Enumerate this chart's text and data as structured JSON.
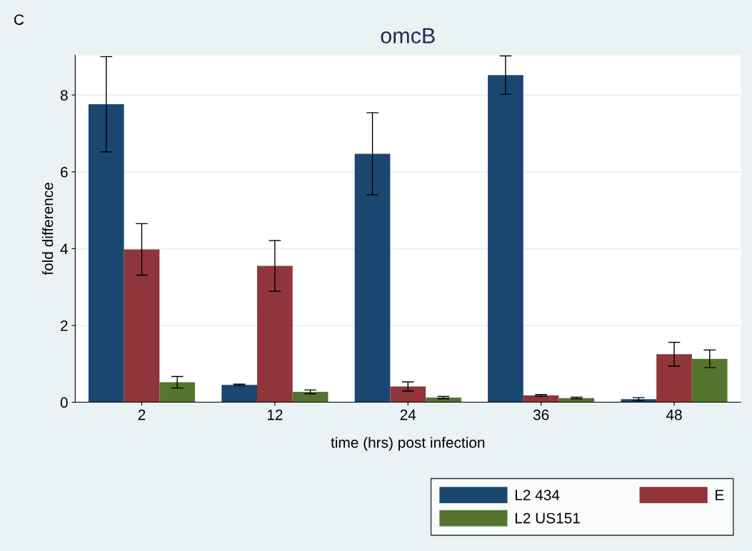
{
  "chart_data": {
    "type": "bar",
    "title": "omcB",
    "xlabel": "time (hrs) post infection",
    "ylabel": "fold difference",
    "annotations": [
      "C"
    ],
    "categories": [
      "2",
      "12",
      "24",
      "36",
      "48"
    ],
    "series": [
      {
        "name": "L2 434",
        "color": "#1a476f",
        "values": [
          7.76,
          0.45,
          6.47,
          8.52,
          0.08
        ],
        "errors": [
          1.24,
          0.02,
          1.07,
          0.5,
          0.04
        ]
      },
      {
        "name": "E",
        "color": "#90353b",
        "values": [
          3.98,
          3.55,
          0.41,
          0.18,
          1.25
        ],
        "errors": [
          0.67,
          0.66,
          0.12,
          0.02,
          0.31
        ]
      },
      {
        "name": "L2 US151",
        "color": "#55752f",
        "values": [
          0.52,
          0.27,
          0.12,
          0.11,
          1.13
        ],
        "errors": [
          0.15,
          0.05,
          0.03,
          0.02,
          0.23
        ]
      }
    ],
    "ylim": [
      0,
      9.04
    ],
    "yticks": [
      0,
      2,
      4,
      6,
      8
    ],
    "grid": "y",
    "legend": "bottom right"
  }
}
